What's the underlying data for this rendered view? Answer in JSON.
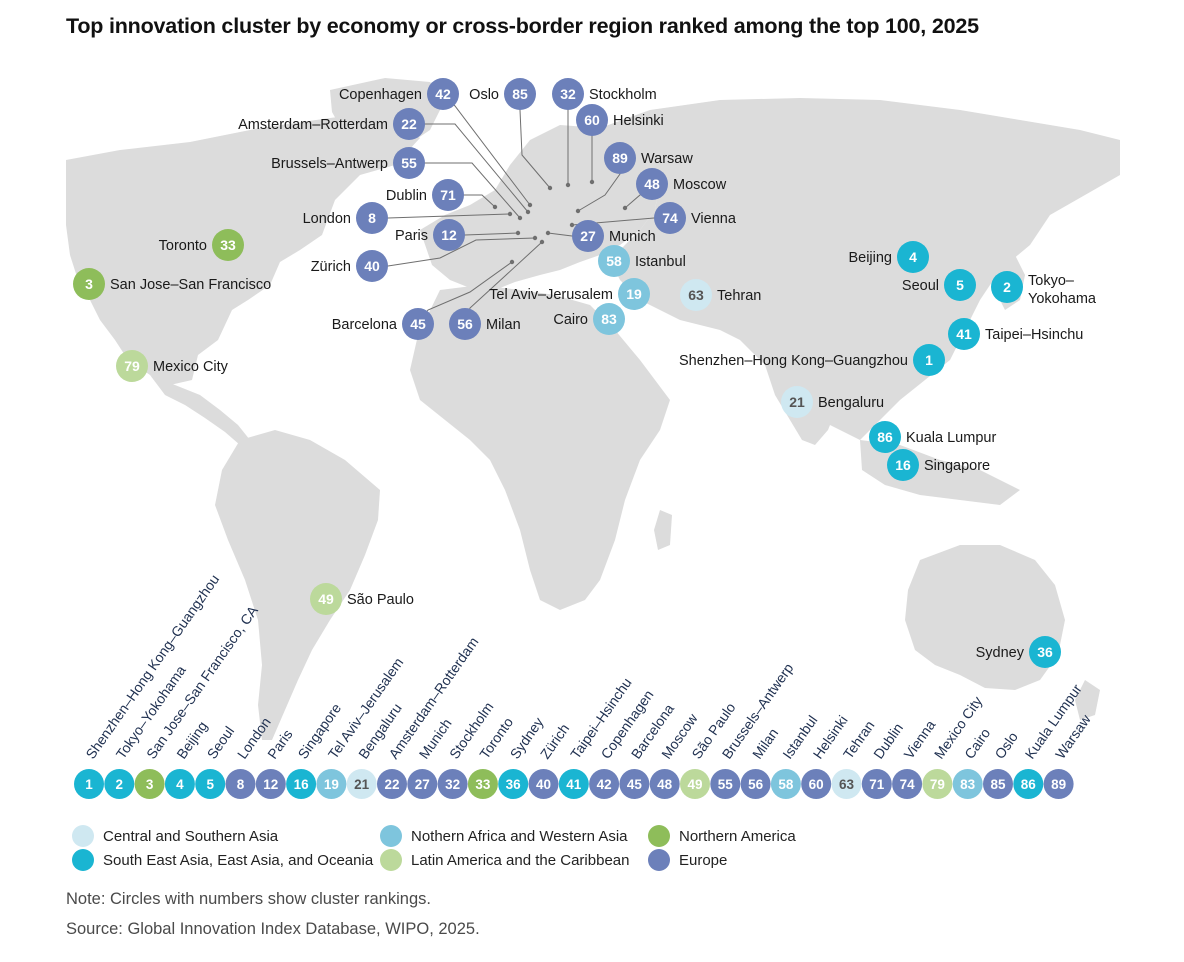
{
  "title": "Top innovation cluster by economy or cross-border region ranked among the top 100, 2025",
  "region_colors": {
    "csa": "#cfe8f1",
    "sea": "#1ab5d2",
    "nafwa": "#7ec5dd",
    "lac": "#bcd99b",
    "na": "#8ebd5a",
    "eu": "#6c80ba"
  },
  "legend": [
    {
      "region": "csa",
      "label": "Central and Southern Asia"
    },
    {
      "region": "sea",
      "label": "South East Asia, East Asia, and Oceania"
    },
    {
      "region": "nafwa",
      "label": "Nothern Africa and Western Asia"
    },
    {
      "region": "lac",
      "label": "Latin America and the Caribbean"
    },
    {
      "region": "na",
      "label": "Northern America"
    },
    {
      "region": "eu",
      "label": "Europe"
    }
  ],
  "clusters": [
    {
      "rank": "42",
      "label": "Copenhagen",
      "region": "eu"
    },
    {
      "rank": "85",
      "label": "Oslo",
      "region": "eu"
    },
    {
      "rank": "32",
      "label": "Stockholm",
      "region": "eu"
    },
    {
      "rank": "22",
      "label": "Amsterdam–Rotterdam",
      "region": "eu"
    },
    {
      "rank": "60",
      "label": "Helsinki",
      "region": "eu"
    },
    {
      "rank": "55",
      "label": "Brussels–Antwerp",
      "region": "eu"
    },
    {
      "rank": "89",
      "label": "Warsaw",
      "region": "eu"
    },
    {
      "rank": "48",
      "label": "Moscow",
      "region": "eu"
    },
    {
      "rank": "71",
      "label": "Dublin",
      "region": "eu"
    },
    {
      "rank": "8",
      "label": "London",
      "region": "eu"
    },
    {
      "rank": "74",
      "label": "Vienna",
      "region": "eu"
    },
    {
      "rank": "12",
      "label": "Paris",
      "region": "eu"
    },
    {
      "rank": "27",
      "label": "Munich",
      "region": "eu"
    },
    {
      "rank": "40",
      "label": "Zürich",
      "region": "eu"
    },
    {
      "rank": "45",
      "label": "Barcelona",
      "region": "eu"
    },
    {
      "rank": "56",
      "label": "Milan",
      "region": "eu"
    },
    {
      "rank": "58",
      "label": "Istanbul",
      "region": "nafwa"
    },
    {
      "rank": "19",
      "label": "Tel Aviv–Jerusalem",
      "region": "nafwa"
    },
    {
      "rank": "83",
      "label": "Cairo",
      "region": "nafwa"
    },
    {
      "rank": "63",
      "label": "Tehran",
      "region": "csa"
    },
    {
      "rank": "21",
      "label": "Bengaluru",
      "region": "csa"
    },
    {
      "rank": "33",
      "label": "Toronto",
      "region": "na"
    },
    {
      "rank": "3",
      "label": "San Jose–San Francisco",
      "region": "na"
    },
    {
      "rank": "79",
      "label": "Mexico City",
      "region": "lac"
    },
    {
      "rank": "49",
      "label": "São Paulo",
      "region": "lac"
    },
    {
      "rank": "4",
      "label": "Beijing",
      "region": "sea"
    },
    {
      "rank": "5",
      "label": "Seoul",
      "region": "sea"
    },
    {
      "rank": "2",
      "label": "Tokyo–Yokohama",
      "region": "sea"
    },
    {
      "rank": "41",
      "label": "Taipei–Hsinchu",
      "region": "sea"
    },
    {
      "rank": "1",
      "label": "Shenzhen–Hong Kong–Guangzhou",
      "region": "sea"
    },
    {
      "rank": "86",
      "label": "Kuala Lumpur",
      "region": "sea"
    },
    {
      "rank": "16",
      "label": "Singapore",
      "region": "sea"
    },
    {
      "rank": "36",
      "label": "Sydney",
      "region": "sea"
    }
  ],
  "bottom_row": [
    {
      "rank": "1",
      "label": "Shenzhen–Hong Kong–Guangzhou",
      "region": "sea"
    },
    {
      "rank": "2",
      "label": "Tokyo–Yokohama",
      "region": "sea"
    },
    {
      "rank": "3",
      "label": "San Jose–San Francisco, CA",
      "region": "na"
    },
    {
      "rank": "4",
      "label": "Beijing",
      "region": "sea"
    },
    {
      "rank": "5",
      "label": "Seoul",
      "region": "sea"
    },
    {
      "rank": "8",
      "label": "London",
      "region": "eu"
    },
    {
      "rank": "12",
      "label": "Paris",
      "region": "eu"
    },
    {
      "rank": "16",
      "label": "Singapore",
      "region": "sea"
    },
    {
      "rank": "19",
      "label": "Tel Aviv–Jerusalem",
      "region": "nafwa"
    },
    {
      "rank": "21",
      "label": "Bengaluru",
      "region": "csa"
    },
    {
      "rank": "22",
      "label": "Amsterdam–Rotterdam",
      "region": "eu"
    },
    {
      "rank": "27",
      "label": "Munich",
      "region": "eu"
    },
    {
      "rank": "32",
      "label": "Stockholm",
      "region": "eu"
    },
    {
      "rank": "33",
      "label": "Toronto",
      "region": "na"
    },
    {
      "rank": "36",
      "label": "Sydney",
      "region": "sea"
    },
    {
      "rank": "40",
      "label": "Zürich",
      "region": "eu"
    },
    {
      "rank": "41",
      "label": "Taipei–Hsinchu",
      "region": "sea"
    },
    {
      "rank": "42",
      "label": "Copenhagen",
      "region": "eu"
    },
    {
      "rank": "45",
      "label": "Barcelona",
      "region": "eu"
    },
    {
      "rank": "48",
      "label": "Moscow",
      "region": "eu"
    },
    {
      "rank": "49",
      "label": "São Paulo",
      "region": "lac"
    },
    {
      "rank": "55",
      "label": "Brussels–Antwerp",
      "region": "eu"
    },
    {
      "rank": "56",
      "label": "Milan",
      "region": "eu"
    },
    {
      "rank": "58",
      "label": "Istanbul",
      "region": "nafwa"
    },
    {
      "rank": "60",
      "label": "Helsinki",
      "region": "eu"
    },
    {
      "rank": "63",
      "label": "Tehran",
      "region": "csa"
    },
    {
      "rank": "71",
      "label": "Dublin",
      "region": "eu"
    },
    {
      "rank": "74",
      "label": "Vienna",
      "region": "eu"
    },
    {
      "rank": "79",
      "label": "Mexico City",
      "region": "lac"
    },
    {
      "rank": "83",
      "label": "Cairo",
      "region": "nafwa"
    },
    {
      "rank": "85",
      "label": "Oslo",
      "region": "eu"
    },
    {
      "rank": "86",
      "label": "Kuala Lumpur",
      "region": "sea"
    },
    {
      "rank": "89",
      "label": "Warsaw",
      "region": "eu"
    }
  ],
  "notes": {
    "note": "Note: Circles with numbers show cluster rankings.",
    "source": "Source: Global Innovation Index Database, WIPO, 2025."
  }
}
